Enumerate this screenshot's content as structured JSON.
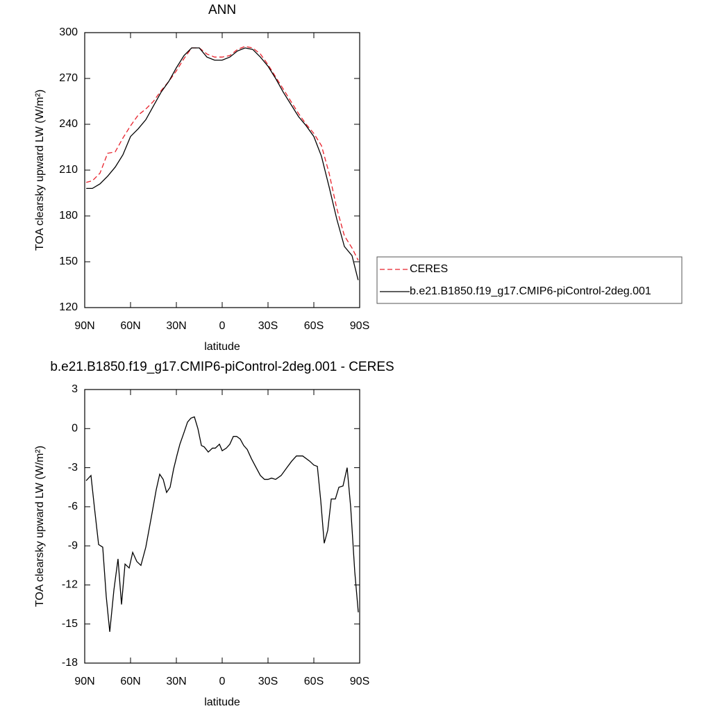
{
  "chart_data": [
    {
      "type": "line",
      "title": "ANN",
      "xlabel": "latitude",
      "ylabel": "TOA clearsky upward LW (W/m²)",
      "x": [
        89,
        85,
        80,
        75,
        70,
        65,
        60,
        55,
        50,
        45,
        40,
        35,
        30,
        25,
        20,
        15,
        10,
        5,
        0,
        -5,
        -10,
        -15,
        -20,
        -25,
        -30,
        -35,
        -40,
        -45,
        -50,
        -55,
        -60,
        -65,
        -70,
        -75,
        -80,
        -85,
        -89
      ],
      "series": [
        {
          "name": "CERES",
          "color": "#e8202a",
          "linestyle": "dashed",
          "values": [
            202,
            203,
            208,
            221,
            222,
            231,
            239,
            246,
            250,
            255,
            262,
            268,
            275,
            283,
            290,
            290,
            286,
            284,
            284,
            285,
            289,
            291,
            290,
            286,
            279,
            271,
            263,
            255,
            247,
            240,
            234,
            226,
            208,
            185,
            167,
            159,
            151
          ]
        },
        {
          "name": "b.e21.B1850.f19_g17.CMIP6-piControl-2deg.001",
          "color": "#000000",
          "linestyle": "solid",
          "values": [
            198,
            198,
            201,
            206,
            212,
            220,
            232,
            237,
            243,
            252,
            261,
            268,
            277,
            285,
            290,
            290,
            284,
            282,
            282,
            284,
            288,
            290,
            289,
            284,
            278,
            270,
            261,
            253,
            245,
            239,
            232,
            219,
            199,
            178,
            160,
            154,
            138
          ]
        }
      ],
      "xlim": [
        90,
        -90
      ],
      "xticks": [
        {
          "value": 90,
          "label": "90N"
        },
        {
          "value": 60,
          "label": "60N"
        },
        {
          "value": 30,
          "label": "30N"
        },
        0,
        {
          "value": -30,
          "label": "30S"
        },
        {
          "value": -60,
          "label": "60S"
        },
        {
          "value": -90,
          "label": "90S"
        }
      ],
      "ylim": [
        120,
        300
      ],
      "yticks": [
        120,
        150,
        180,
        210,
        240,
        270,
        300
      ],
      "legend": "right"
    },
    {
      "type": "line",
      "title": "b.e21.B1850.f19_g17.CMIP6-piControl-2deg.001 - CERES",
      "xlabel": "latitude",
      "ylabel": "TOA clearsky upward LW (W/m²)",
      "x": [
        89.1,
        85.9,
        83.6,
        80.9,
        78.2,
        75.9,
        73.6,
        70.9,
        68.2,
        65.9,
        63.6,
        60.9,
        58.6,
        55.9,
        53.2,
        50,
        46.4,
        43.2,
        40.9,
        38.6,
        36.4,
        34.1,
        31.8,
        29.5,
        27.7,
        25,
        22.7,
        20.5,
        18.2,
        15.9,
        13.6,
        11.8,
        9.1,
        6.4,
        4.5,
        1.8,
        0,
        -2.7,
        -5,
        -7.3,
        -9.5,
        -11.8,
        -14.1,
        -16.4,
        -19.1,
        -21.8,
        -25,
        -27.7,
        -30,
        -32.3,
        -35,
        -38.6,
        -42.3,
        -45.5,
        -48.6,
        -52.7,
        -57.3,
        -60,
        -62.3,
        -64.5,
        -66.8,
        -69.1,
        -71.4,
        -74.1,
        -76.4,
        -79.1,
        -81.8,
        -84.1,
        -86.8,
        -89.1
      ],
      "series": [
        {
          "name": "b.e21.B1850.f19_g17.CMIP6-piControl-2deg.001 - CERES",
          "color": "#000000",
          "linestyle": "solid",
          "values": [
            -4.0,
            -3.6,
            -6.1,
            -8.9,
            -9.1,
            -12.9,
            -15.6,
            -12.4,
            -10.0,
            -13.5,
            -10.4,
            -10.7,
            -9.5,
            -10.2,
            -10.5,
            -9.1,
            -6.8,
            -4.7,
            -3.5,
            -3.9,
            -4.9,
            -4.5,
            -3.1,
            -2.0,
            -1.2,
            -0.3,
            0.5,
            0.8,
            0.9,
            0.0,
            -1.3,
            -1.4,
            -1.8,
            -1.5,
            -1.5,
            -1.2,
            -1.7,
            -1.5,
            -1.2,
            -0.6,
            -0.6,
            -0.8,
            -1.3,
            -1.6,
            -2.3,
            -2.9,
            -3.6,
            -3.9,
            -3.9,
            -3.8,
            -3.9,
            -3.6,
            -3.0,
            -2.5,
            -2.1,
            -2.1,
            -2.5,
            -2.8,
            -2.9,
            -5.5,
            -8.8,
            -7.8,
            -5.4,
            -5.4,
            -4.5,
            -4.4,
            -3.0,
            -6.0,
            -11.0,
            -14.1
          ]
        }
      ],
      "xlim": [
        90,
        -90
      ],
      "xticks": [
        {
          "value": 90,
          "label": "90N"
        },
        {
          "value": 60,
          "label": "60N"
        },
        {
          "value": 30,
          "label": "30N"
        },
        0,
        {
          "value": -30,
          "label": "30S"
        },
        {
          "value": -60,
          "label": "60S"
        },
        {
          "value": -90,
          "label": "90S"
        }
      ],
      "ylim": [
        -18,
        3
      ],
      "yticks": [
        -18,
        -15,
        -12,
        -9,
        -6,
        -3,
        0,
        3
      ]
    }
  ]
}
